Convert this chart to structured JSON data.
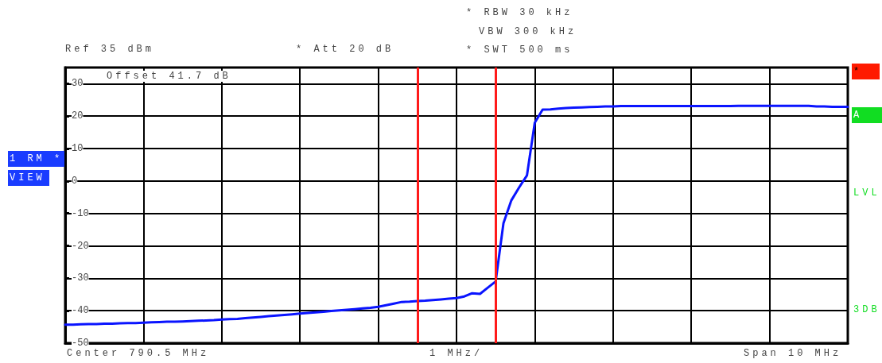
{
  "chart_data": {
    "type": "line",
    "categories": [
      null,
      null,
      null,
      null,
      null,
      null,
      null,
      null,
      null,
      null,
      null,
      null,
      null,
      null,
      null,
      null,
      null,
      null,
      null,
      null,
      null,
      null,
      null,
      null,
      null,
      null,
      null,
      null,
      null,
      null,
      null,
      null,
      null,
      null,
      null,
      null,
      null,
      null,
      null,
      null,
      null,
      null,
      null,
      null,
      null,
      null,
      null,
      null,
      null,
      null,
      null,
      null,
      null,
      null,
      null,
      null,
      null,
      null,
      null,
      null,
      null,
      null,
      null,
      null,
      null,
      null,
      null,
      null,
      null,
      null,
      null,
      null,
      null,
      null,
      null,
      null,
      null,
      null,
      null,
      null,
      null,
      null,
      null,
      null,
      null,
      null,
      null,
      null,
      null,
      null,
      null,
      null,
      null,
      null,
      null,
      null,
      null,
      null,
      null,
      null,
      null
    ],
    "series": [
      {
        "color": "#0a14ff",
        "values": [
          -44.3,
          -44.3,
          -44.2,
          -44.1,
          -44.1,
          -44.0,
          -44.0,
          -43.9,
          -43.8,
          -43.8,
          -43.7,
          -43.6,
          -43.5,
          -43.4,
          -43.4,
          -43.3,
          -43.2,
          -43.1,
          -43.0,
          -42.9,
          -42.7,
          -42.6,
          -42.5,
          -42.3,
          -42.1,
          -41.9,
          -41.7,
          -41.5,
          -41.3,
          -41.1,
          -40.9,
          -40.7,
          -40.5,
          -40.3,
          -40.1,
          -39.9,
          -39.7,
          -39.5,
          -39.3,
          -39.1,
          -38.8,
          -38.3,
          -37.8,
          -37.3,
          -37.2,
          -37.0,
          -36.9,
          -36.7,
          -36.5,
          -36.3,
          -36.1,
          -35.6,
          -34.6,
          -34.8,
          -32.9,
          -31.0,
          -13.0,
          -6.0,
          -2.0,
          1.7,
          18.0,
          22.0,
          22.1,
          22.3,
          22.5,
          22.6,
          22.7,
          22.8,
          22.9,
          23.0,
          23.0,
          23.1,
          23.1,
          23.1,
          23.1,
          23.1,
          23.1,
          23.1,
          23.1,
          23.1,
          23.1,
          23.1,
          23.1,
          23.1,
          23.1,
          23.1,
          23.2,
          23.2,
          23.2,
          23.2,
          23.2,
          23.2,
          23.2,
          23.2,
          23.2,
          23.2,
          23.0,
          23.0,
          22.9,
          22.9,
          22.9
        ]
      }
    ],
    "ylim": [
      -50,
      35
    ],
    "yticks": [
      30,
      20,
      10,
      0,
      -10,
      -20,
      -30,
      -40,
      -50
    ],
    "tick_labels": "y",
    "grid": true,
    "marker": "none",
    "line_style": "solid",
    "annotations": [
      "Ref 35 dBm",
      "* Att 20 dB",
      "* RBW 30 kHz",
      "VBW 300 kHz",
      "* SWT 500 ms",
      "Offset 41.7 dB",
      "1 RM *",
      "VIEW",
      "*",
      "A",
      "LVL",
      "3DB",
      "Center 790.5 MHz",
      "1 MHz/",
      "Span 10 MHz"
    ]
  }
}
